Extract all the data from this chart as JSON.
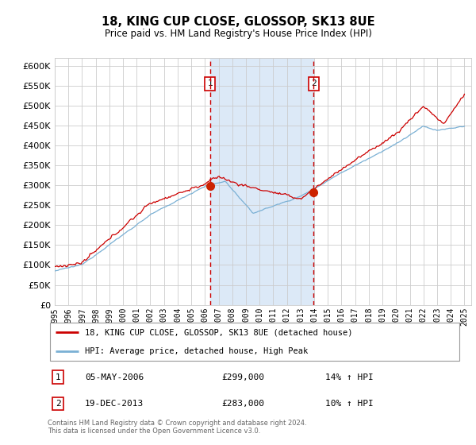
{
  "title": "18, KING CUP CLOSE, GLOSSOP, SK13 8UE",
  "subtitle": "Price paid vs. HM Land Registry's House Price Index (HPI)",
  "red_label": "18, KING CUP CLOSE, GLOSSOP, SK13 8UE (detached house)",
  "blue_label": "HPI: Average price, detached house, High Peak",
  "transaction1": {
    "date": "05-MAY-2006",
    "price": 299000,
    "label": "1",
    "pct": "14% ↑ HPI",
    "year": 2006.37
  },
  "transaction2": {
    "date": "19-DEC-2013",
    "price": 283000,
    "label": "2",
    "pct": "10% ↑ HPI",
    "year": 2013.96
  },
  "footer": "Contains HM Land Registry data © Crown copyright and database right 2024.\nThis data is licensed under the Open Government Licence v3.0.",
  "ylim": [
    0,
    620000
  ],
  "yticks": [
    0,
    50000,
    100000,
    150000,
    200000,
    250000,
    300000,
    350000,
    400000,
    450000,
    500000,
    550000,
    600000
  ],
  "year_start": 1995,
  "year_end": 2025,
  "background_color": "#ffffff",
  "grid_color": "#cccccc",
  "shaded_region_color": "#dce9f7",
  "dashed_line_color": "#cc0000",
  "red_line_color": "#cc0000",
  "blue_line_color": "#7ab0d4",
  "marker_color": "#cc2200"
}
